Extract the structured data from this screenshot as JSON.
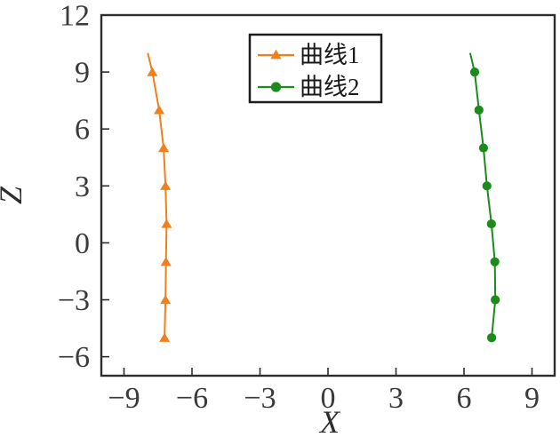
{
  "figure": {
    "background": "#ffffff",
    "axis_color": "#2d2d2d",
    "tick_label_color": "#3b3b3b"
  },
  "chart_data": {
    "type": "line",
    "title": "",
    "xlabel": "X",
    "ylabel": "Z",
    "xlim": [
      -10,
      10
    ],
    "ylim": [
      -7,
      12
    ],
    "xticks": [
      -9,
      -6,
      -3,
      0,
      3,
      6,
      9
    ],
    "yticks": [
      -6,
      -3,
      0,
      3,
      6,
      9,
      12
    ],
    "grid": false,
    "legend": {
      "position": "upper-center-inside",
      "border_color": "#1c1c1c",
      "background": "#ffffff"
    },
    "series": [
      {
        "name": "曲线1",
        "color": "#F0801E",
        "marker": "triangle-up",
        "line_style": "solid",
        "marker_skip_first": true,
        "points": [
          [
            -7.95,
            10
          ],
          [
            -7.75,
            9
          ],
          [
            -7.45,
            7
          ],
          [
            -7.25,
            5
          ],
          [
            -7.17,
            3
          ],
          [
            -7.12,
            1
          ],
          [
            -7.15,
            -1
          ],
          [
            -7.17,
            -3
          ],
          [
            -7.21,
            -5
          ]
        ]
      },
      {
        "name": "曲线2",
        "color": "#1B8C1B",
        "marker": "circle",
        "line_style": "solid",
        "marker_skip_first": true,
        "points": [
          [
            6.27,
            10
          ],
          [
            6.47,
            9
          ],
          [
            6.66,
            7
          ],
          [
            6.86,
            5
          ],
          [
            7.01,
            3
          ],
          [
            7.21,
            1
          ],
          [
            7.36,
            -1
          ],
          [
            7.38,
            -3
          ],
          [
            7.22,
            -5
          ]
        ]
      }
    ]
  }
}
